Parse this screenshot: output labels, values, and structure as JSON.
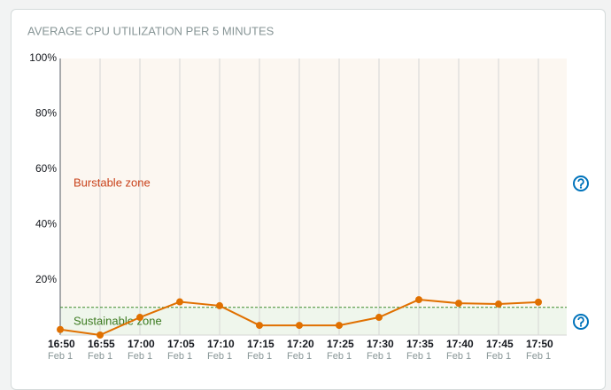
{
  "chart_data": {
    "type": "line",
    "title": "AVERAGE CPU UTILIZATION PER 5 MINUTES",
    "categories": [
      "16:50",
      "16:55",
      "17:00",
      "17:05",
      "17:10",
      "17:15",
      "17:20",
      "17:25",
      "17:30",
      "17:35",
      "17:40",
      "17:45",
      "17:50"
    ],
    "category_sublabels": [
      "Feb 1",
      "Feb 1",
      "Feb 1",
      "Feb 1",
      "Feb 1",
      "Feb 1",
      "Feb 1",
      "Feb 1",
      "Feb 1",
      "Feb 1",
      "Feb 1",
      "Feb 1",
      "Feb 1"
    ],
    "values": [
      2,
      0,
      6.4,
      12,
      10.6,
      3.5,
      3.5,
      3.5,
      6.4,
      12.8,
      11.5,
      11.2,
      11.9
    ],
    "color": "#e07000",
    "ylim": [
      0,
      100
    ],
    "yticks": [
      {
        "value": 20,
        "label": "20%"
      },
      {
        "value": 40,
        "label": "40%"
      },
      {
        "value": 60,
        "label": "60%"
      },
      {
        "value": 80,
        "label": "80%"
      },
      {
        "value": 100,
        "label": "100%"
      }
    ],
    "threshold": 10,
    "zones": [
      {
        "label": "Burstable zone",
        "color": "#c9421b",
        "fill": "#fcf7f1"
      },
      {
        "label": "Sustainable zone",
        "color": "#3b7a1f",
        "fill": "#eff6ec"
      }
    ],
    "threshold_color": "#3d8b2a"
  }
}
